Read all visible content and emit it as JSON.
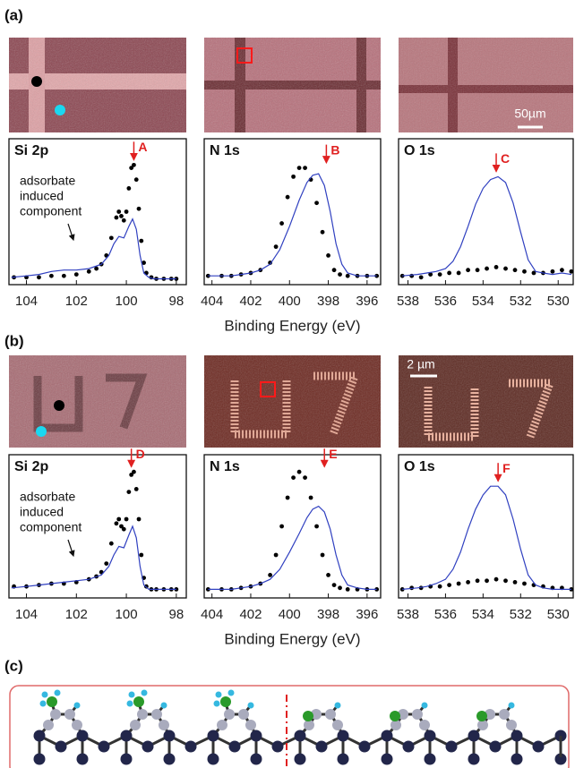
{
  "panel_labels": [
    "(a)",
    "(b)",
    "(c)"
  ],
  "scale_bars": [
    "50µm",
    "2 µm"
  ],
  "chart_data": [
    {
      "type": "line",
      "title": "Si 2p",
      "xlim": [
        104.7,
        97.6
      ],
      "xticks": [
        104,
        102,
        100,
        98
      ],
      "ylim": [
        0,
        1
      ],
      "series": [
        {
          "style": "dots",
          "color": "#000000",
          "x": [
            104.5,
            104,
            103.5,
            103,
            102.5,
            102,
            101.5,
            101.2,
            101,
            100.8,
            100.6,
            100.4,
            100.3,
            100.2,
            100.1,
            100,
            99.9,
            99.8,
            99.7,
            99.6,
            99.5,
            99.4,
            99.3,
            99.2,
            99,
            98.8,
            98.5,
            98.2,
            98
          ],
          "values": [
            0.05,
            0.05,
            0.05,
            0.06,
            0.06,
            0.07,
            0.09,
            0.11,
            0.14,
            0.2,
            0.32,
            0.46,
            0.5,
            0.47,
            0.44,
            0.5,
            0.66,
            0.8,
            0.82,
            0.72,
            0.52,
            0.3,
            0.15,
            0.08,
            0.05,
            0.04,
            0.04,
            0.04,
            0.04
          ]
        },
        {
          "style": "line",
          "color": "#3040c0",
          "x": [
            104.6,
            104,
            103.5,
            103,
            102.5,
            102,
            101.5,
            101,
            100.7,
            100.5,
            100.3,
            100.1,
            99.9,
            99.75,
            99.6,
            99.45,
            99.3,
            99.1,
            98.9,
            98.5,
            98
          ],
          "values": [
            0.05,
            0.06,
            0.07,
            0.09,
            0.1,
            0.1,
            0.11,
            0.14,
            0.2,
            0.28,
            0.33,
            0.32,
            0.4,
            0.45,
            0.38,
            0.2,
            0.08,
            0.05,
            0.04,
            0.04,
            0.04
          ]
        }
      ],
      "annotations": [
        {
          "text": "A",
          "x": 99.7,
          "color": "#e02020"
        }
      ],
      "note": [
        "adsorbate",
        "induced",
        "component"
      ]
    },
    {
      "type": "line",
      "title": "N 1s",
      "xlim": [
        404.4,
        395.3
      ],
      "xticks": [
        404,
        402,
        400,
        398,
        396
      ],
      "ylim": [
        0,
        1
      ],
      "xlabel": "Binding Energy (eV)",
      "series": [
        {
          "style": "dots",
          "color": "#000000",
          "x": [
            404.2,
            403.5,
            403,
            402.5,
            402,
            401.5,
            401,
            400.7,
            400.4,
            400.1,
            399.8,
            399.5,
            399.2,
            398.9,
            398.6,
            398.3,
            398,
            397.7,
            397.4,
            397,
            396.5,
            396,
            395.5
          ],
          "values": [
            0.06,
            0.06,
            0.06,
            0.07,
            0.08,
            0.1,
            0.15,
            0.26,
            0.42,
            0.6,
            0.74,
            0.8,
            0.8,
            0.72,
            0.56,
            0.36,
            0.2,
            0.1,
            0.07,
            0.06,
            0.06,
            0.06,
            0.06
          ]
        },
        {
          "style": "line",
          "color": "#3040c0",
          "x": [
            404.2,
            403.5,
            403,
            402.5,
            402,
            401.5,
            401,
            400.5,
            400,
            399.5,
            399.1,
            398.8,
            398.5,
            398.2,
            397.9,
            397.6,
            397.3,
            397,
            396.5,
            396,
            395.5
          ],
          "values": [
            0.06,
            0.06,
            0.06,
            0.07,
            0.08,
            0.1,
            0.14,
            0.24,
            0.4,
            0.58,
            0.7,
            0.75,
            0.76,
            0.68,
            0.5,
            0.28,
            0.14,
            0.08,
            0.06,
            0.06,
            0.06
          ]
        }
      ],
      "annotations": [
        {
          "text": "B",
          "x": 398.1,
          "color": "#e02020"
        }
      ]
    },
    {
      "type": "line",
      "title": "O 1s",
      "xlim": [
        538.5,
        529.2
      ],
      "xticks": [
        538,
        536,
        534,
        532,
        530
      ],
      "ylim": [
        0,
        1
      ],
      "series": [
        {
          "style": "dots",
          "color": "#000000",
          "x": [
            538.3,
            537.8,
            537.3,
            536.8,
            536.3,
            535.8,
            535.3,
            534.8,
            534.3,
            533.8,
            533.3,
            532.8,
            532.3,
            531.8,
            531.3,
            530.8,
            530.3,
            529.8,
            529.3
          ],
          "values": [
            0.06,
            0.06,
            0.05,
            0.07,
            0.07,
            0.08,
            0.08,
            0.1,
            0.1,
            0.11,
            0.12,
            0.11,
            0.1,
            0.09,
            0.08,
            0.08,
            0.09,
            0.1,
            0.09
          ]
        },
        {
          "style": "line",
          "color": "#3040c0",
          "x": [
            538.3,
            537.5,
            537,
            536.5,
            536,
            535.6,
            535.2,
            534.8,
            534.4,
            534,
            533.6,
            533.2,
            532.8,
            532.4,
            532,
            531.6,
            531.2,
            530.8,
            530.3,
            529.8,
            529.3
          ],
          "values": [
            0.06,
            0.07,
            0.08,
            0.09,
            0.11,
            0.16,
            0.26,
            0.4,
            0.55,
            0.66,
            0.72,
            0.74,
            0.7,
            0.56,
            0.36,
            0.17,
            0.09,
            0.08,
            0.07,
            0.08,
            0.07
          ]
        }
      ],
      "annotations": [
        {
          "text": "C",
          "x": 533.3,
          "color": "#e02020"
        }
      ]
    },
    {
      "type": "line",
      "title": "Si 2p",
      "xlim": [
        104.7,
        97.6
      ],
      "xticks": [
        104,
        102,
        100,
        98
      ],
      "ylim": [
        0,
        1
      ],
      "series": [
        {
          "style": "dots",
          "color": "#000000",
          "x": [
            104.5,
            104,
            103.5,
            103,
            102.5,
            102,
            101.5,
            101.2,
            101,
            100.8,
            100.6,
            100.4,
            100.3,
            100.2,
            100.1,
            100,
            99.9,
            99.8,
            99.7,
            99.6,
            99.5,
            99.4,
            99.3,
            99.2,
            99,
            98.8,
            98.5,
            98.2,
            98
          ],
          "values": [
            0.08,
            0.08,
            0.09,
            0.1,
            0.1,
            0.11,
            0.13,
            0.15,
            0.18,
            0.24,
            0.38,
            0.52,
            0.55,
            0.5,
            0.48,
            0.55,
            0.74,
            0.86,
            0.88,
            0.76,
            0.55,
            0.3,
            0.14,
            0.08,
            0.06,
            0.06,
            0.06,
            0.06,
            0.06
          ]
        },
        {
          "style": "line",
          "color": "#3040c0",
          "x": [
            104.6,
            104,
            103.5,
            103,
            102.5,
            102,
            101.5,
            101,
            100.7,
            100.5,
            100.3,
            100.1,
            99.9,
            99.75,
            99.6,
            99.45,
            99.3,
            99.1,
            98.9,
            98.5,
            98
          ],
          "values": [
            0.07,
            0.08,
            0.09,
            0.1,
            0.11,
            0.12,
            0.13,
            0.16,
            0.22,
            0.3,
            0.36,
            0.35,
            0.44,
            0.5,
            0.42,
            0.22,
            0.09,
            0.06,
            0.06,
            0.06,
            0.06
          ]
        }
      ],
      "annotations": [
        {
          "text": "D",
          "x": 99.8,
          "color": "#e02020"
        }
      ],
      "note": [
        "adsorbate",
        "induced",
        "component"
      ]
    },
    {
      "type": "line",
      "title": "N 1s",
      "xlim": [
        404.4,
        395.3
      ],
      "xticks": [
        404,
        402,
        400,
        398,
        396
      ],
      "ylim": [
        0,
        1
      ],
      "xlabel": "Binding Energy (eV)",
      "series": [
        {
          "style": "dots",
          "color": "#000000",
          "x": [
            404.2,
            403.5,
            403,
            402.5,
            402,
            401.5,
            401,
            400.7,
            400.4,
            400.1,
            399.8,
            399.5,
            399.2,
            398.9,
            398.6,
            398.3,
            398,
            397.7,
            397.4,
            397,
            396.5,
            396,
            395.5
          ],
          "values": [
            0.06,
            0.06,
            0.06,
            0.07,
            0.08,
            0.1,
            0.16,
            0.3,
            0.5,
            0.7,
            0.84,
            0.88,
            0.84,
            0.7,
            0.5,
            0.3,
            0.16,
            0.09,
            0.07,
            0.06,
            0.06,
            0.06,
            0.06
          ]
        },
        {
          "style": "line",
          "color": "#3040c0",
          "x": [
            404.2,
            403.5,
            403,
            402.5,
            402,
            401.5,
            401,
            400.5,
            400,
            399.5,
            399.1,
            398.8,
            398.5,
            398.2,
            397.9,
            397.6,
            397.3,
            397,
            396.5,
            396,
            395.5
          ],
          "values": [
            0.06,
            0.06,
            0.06,
            0.07,
            0.08,
            0.1,
            0.13,
            0.2,
            0.32,
            0.45,
            0.56,
            0.62,
            0.64,
            0.6,
            0.48,
            0.3,
            0.16,
            0.09,
            0.07,
            0.06,
            0.06
          ]
        }
      ],
      "annotations": [
        {
          "text": "E",
          "x": 398.2,
          "color": "#e02020"
        }
      ]
    },
    {
      "type": "line",
      "title": "O 1s",
      "xlim": [
        538.5,
        529.2
      ],
      "xticks": [
        538,
        536,
        534,
        532,
        530
      ],
      "ylim": [
        0,
        1
      ],
      "series": [
        {
          "style": "dots",
          "color": "#000000",
          "x": [
            538.3,
            537.8,
            537.3,
            536.8,
            536.3,
            535.8,
            535.3,
            534.8,
            534.3,
            533.8,
            533.3,
            532.8,
            532.3,
            531.8,
            531.3,
            530.8,
            530.3,
            529.8,
            529.3
          ],
          "values": [
            0.06,
            0.07,
            0.07,
            0.08,
            0.08,
            0.09,
            0.1,
            0.11,
            0.12,
            0.12,
            0.13,
            0.12,
            0.11,
            0.1,
            0.09,
            0.08,
            0.07,
            0.07,
            0.06
          ]
        },
        {
          "style": "line",
          "color": "#3040c0",
          "x": [
            538.3,
            537.5,
            537,
            536.5,
            536,
            535.6,
            535.2,
            534.8,
            534.4,
            534,
            533.6,
            533.2,
            532.8,
            532.4,
            532,
            531.6,
            531.2,
            530.8,
            530.3,
            529.8,
            529.3
          ],
          "values": [
            0.06,
            0.07,
            0.08,
            0.1,
            0.13,
            0.2,
            0.32,
            0.48,
            0.62,
            0.72,
            0.78,
            0.78,
            0.72,
            0.55,
            0.34,
            0.16,
            0.09,
            0.07,
            0.06,
            0.06,
            0.06
          ]
        }
      ],
      "annotations": [
        {
          "text": "F",
          "x": 533.2,
          "color": "#e02020"
        }
      ]
    }
  ]
}
